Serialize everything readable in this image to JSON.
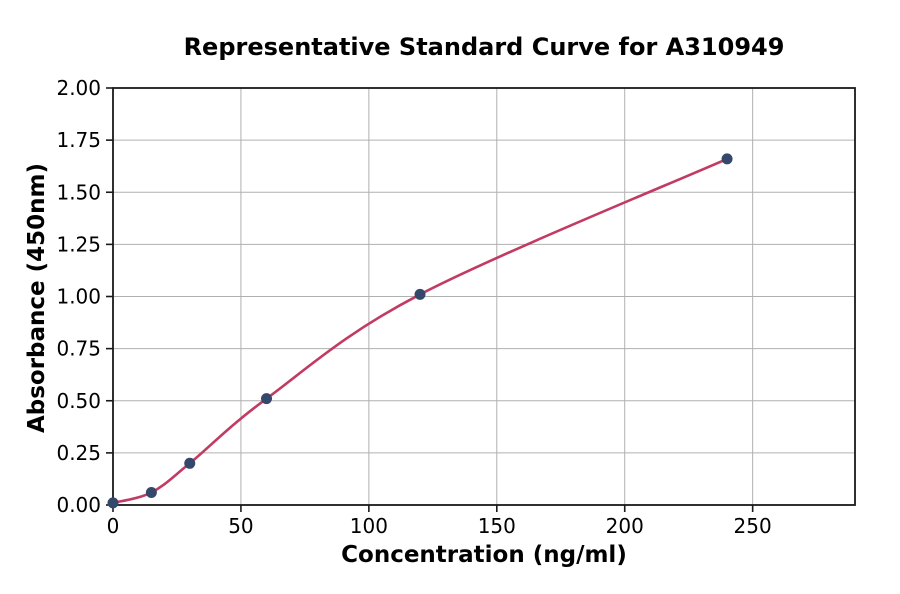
{
  "figure": {
    "background_color": "#ffffff"
  },
  "chart_data": {
    "type": "scatter",
    "title": "Representative Standard Curve for A310949",
    "xlabel": "Concentration (ng/ml)",
    "ylabel": "Absorbance (450nm)",
    "xlim": [
      0,
      290
    ],
    "ylim": [
      0,
      2.0
    ],
    "grid": true,
    "legend": false,
    "x_ticks": [
      {
        "value": 0,
        "label": "0"
      },
      {
        "value": 50,
        "label": "50"
      },
      {
        "value": 100,
        "label": "100"
      },
      {
        "value": 150,
        "label": "150"
      },
      {
        "value": 200,
        "label": "200"
      },
      {
        "value": 250,
        "label": "250"
      }
    ],
    "y_ticks": [
      {
        "value": 0.0,
        "label": "0.00"
      },
      {
        "value": 0.25,
        "label": "0.25"
      },
      {
        "value": 0.5,
        "label": "0.50"
      },
      {
        "value": 0.75,
        "label": "0.75"
      },
      {
        "value": 1.0,
        "label": "1.00"
      },
      {
        "value": 1.25,
        "label": "1.25"
      },
      {
        "value": 1.5,
        "label": "1.50"
      },
      {
        "value": 1.75,
        "label": "1.75"
      },
      {
        "value": 2.0,
        "label": "2.00"
      }
    ],
    "series": [
      {
        "name": "standard-curve",
        "points": [
          {
            "x": 0,
            "y": 0.01
          },
          {
            "x": 15,
            "y": 0.06
          },
          {
            "x": 30,
            "y": 0.2
          },
          {
            "x": 60,
            "y": 0.51
          },
          {
            "x": 120,
            "y": 1.01
          },
          {
            "x": 240,
            "y": 1.66
          }
        ]
      }
    ],
    "colors": {
      "curve": "#c23b63",
      "marker": "#33486b",
      "grid": "#b0b0b0",
      "axis": "#1a1a1a",
      "tick_text": "#000000"
    }
  }
}
